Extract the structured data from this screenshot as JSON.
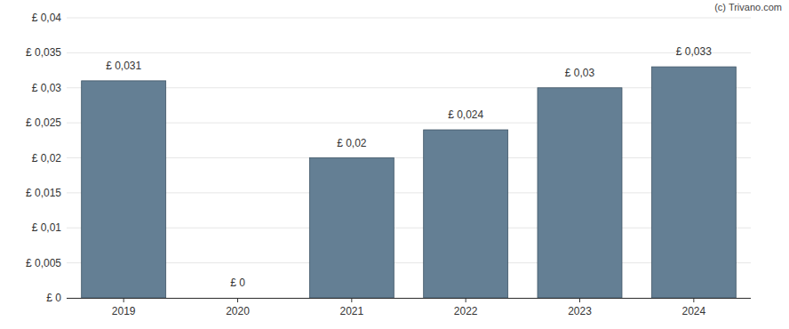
{
  "chart_data": {
    "type": "bar",
    "annotations": [
      "(c) Trivano.com"
    ],
    "categories": [
      "2019",
      "2020",
      "2021",
      "2022",
      "2023",
      "2024"
    ],
    "values": [
      0.031,
      0,
      0.02,
      0.024,
      0.03,
      0.033
    ],
    "value_labels": [
      "£ 0,031",
      "£ 0",
      "£ 0,02",
      "£ 0,024",
      "£ 0,03",
      "£ 0,033"
    ],
    "color": "#647f94",
    "ylim": [
      0,
      0.04
    ],
    "yticks": [
      {
        "value": 0,
        "label": "£ 0"
      },
      {
        "value": 0.005,
        "label": "£ 0,005"
      },
      {
        "value": 0.01,
        "label": "£ 0,01"
      },
      {
        "value": 0.015,
        "label": "£ 0,015"
      },
      {
        "value": 0.02,
        "label": "£ 0,02"
      },
      {
        "value": 0.025,
        "label": "£ 0,025"
      },
      {
        "value": 0.03,
        "label": "£ 0,03"
      },
      {
        "value": 0.035,
        "label": "£ 0,035"
      },
      {
        "value": 0.04,
        "label": "£ 0,04"
      }
    ],
    "grid": true,
    "data_labels": true
  }
}
